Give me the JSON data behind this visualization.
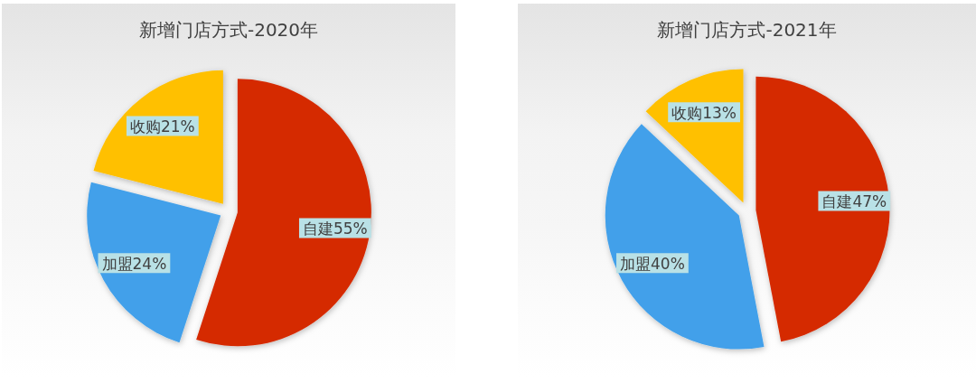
{
  "chart_data": [
    {
      "type": "pie",
      "title": "新增门店方式-2020年",
      "categories": [
        "自建",
        "加盟",
        "收购"
      ],
      "values": [
        55,
        24,
        21
      ],
      "colors": [
        "#d52b00",
        "#42a0ea",
        "#ffc000"
      ],
      "value_labels": [
        "55%",
        "24%",
        "21%"
      ]
    },
    {
      "type": "pie",
      "title": "新增门店方式-2021年",
      "categories": [
        "自建",
        "加盟",
        "收购"
      ],
      "values": [
        47,
        40,
        13
      ],
      "colors": [
        "#d52b00",
        "#42a0ea",
        "#ffc000"
      ],
      "value_labels": [
        "47%",
        "40%",
        "13%"
      ]
    }
  ]
}
